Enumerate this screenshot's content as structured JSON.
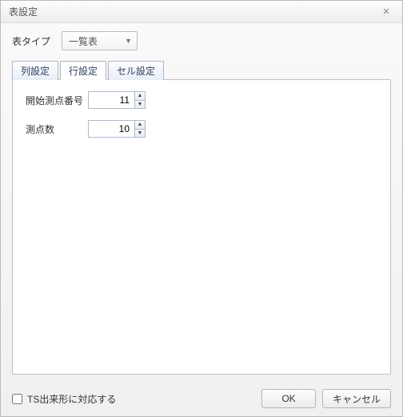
{
  "dialog": {
    "title": "表設定",
    "tableTypeLabel": "表タイプ",
    "tableTypeValue": "一覧表"
  },
  "tabs": {
    "col": "列設定",
    "row": "行設定",
    "cell": "セル設定"
  },
  "rowTab": {
    "startLabel": "開始測点番号",
    "startValue": "11",
    "countLabel": "測点数",
    "countValue": "10"
  },
  "footer": {
    "tsCheckbox": "TS出来形に対応する",
    "ok": "OK",
    "cancel": "キャンセル"
  }
}
